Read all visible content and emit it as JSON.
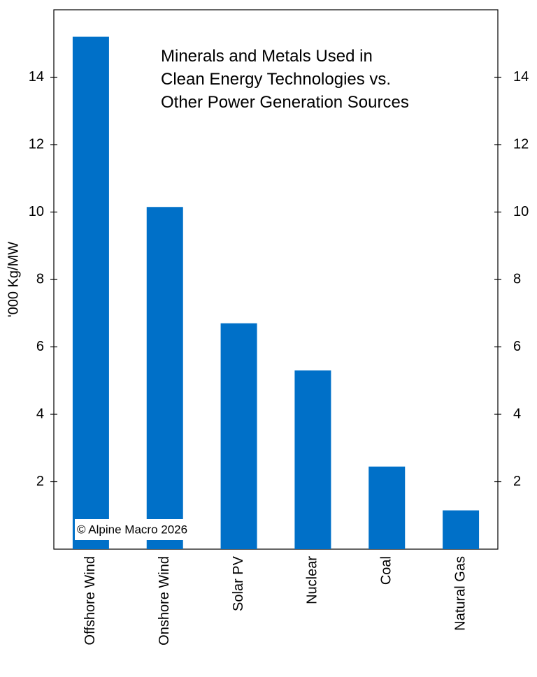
{
  "chart_data": {
    "type": "bar",
    "title": [
      "Minerals and Metals Used in",
      "Clean Energy Technologies vs.",
      "Other Power Generation Sources"
    ],
    "y_label": "'000 Kg/MW",
    "annotation": "© Alpine Macro 2026",
    "categories": [
      "Offshore Wind",
      "Onshore Wind",
      "Solar PV",
      "Nuclear",
      "Coal",
      "Natural Gas"
    ],
    "values": [
      15.2,
      10.15,
      6.7,
      5.3,
      2.45,
      1.15
    ],
    "color": "#0070c8",
    "ylim": [
      0,
      16
    ],
    "yticks": [
      2,
      4,
      6,
      8,
      10,
      12,
      14
    ],
    "y2lim": [
      0,
      16
    ],
    "y2ticks": [
      2,
      4,
      6,
      8,
      10,
      12,
      14
    ],
    "grid": false
  }
}
